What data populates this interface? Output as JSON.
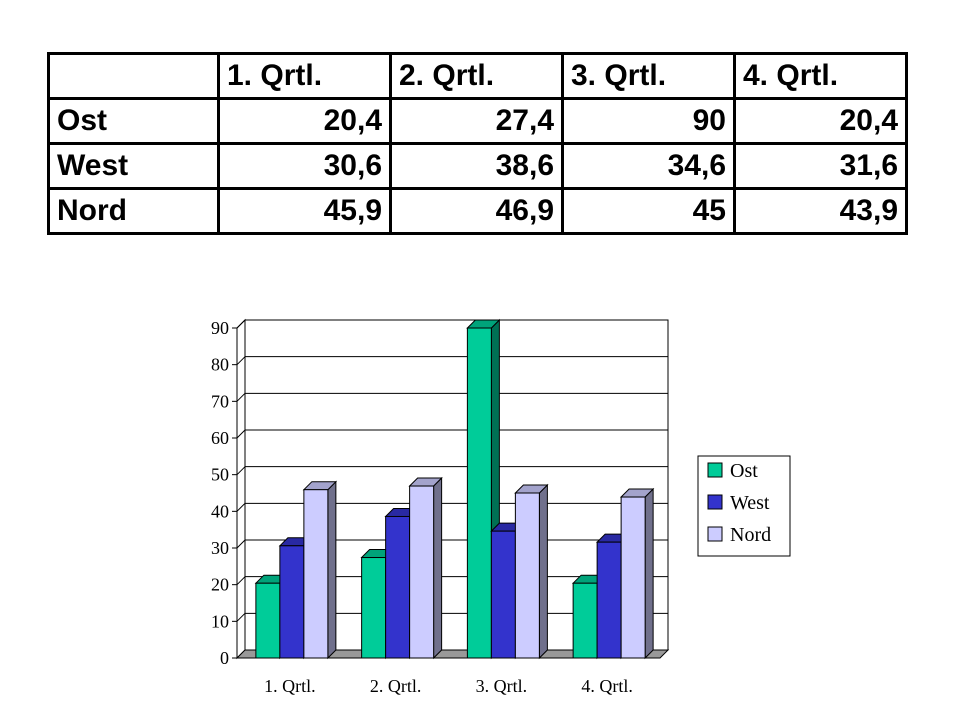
{
  "table": {
    "headers": [
      "",
      "1. Qrtl.",
      "2. Qrtl.",
      "3. Qrtl.",
      "4. Qrtl."
    ],
    "rows": [
      {
        "label": "Ost",
        "values": [
          "20,4",
          "27,4",
          "90",
          "20,4"
        ]
      },
      {
        "label": "West",
        "values": [
          "30,6",
          "38,6",
          "34,6",
          "31,6"
        ]
      },
      {
        "label": "Nord",
        "values": [
          "45,9",
          "46,9",
          "45",
          "43,9"
        ]
      }
    ]
  },
  "chart_data": {
    "type": "bar",
    "categories": [
      "1. Qrtl.",
      "2. Qrtl.",
      "3. Qrtl.",
      "4. Qrtl."
    ],
    "series": [
      {
        "name": "Ost",
        "values": [
          20.4,
          27.4,
          90,
          20.4
        ],
        "color": "#00CC99"
      },
      {
        "name": "West",
        "values": [
          30.6,
          38.6,
          34.6,
          31.6
        ],
        "color": "#3333CC"
      },
      {
        "name": "Nord",
        "values": [
          45.9,
          46.9,
          45,
          43.9
        ],
        "color": "#CCCCFF"
      }
    ],
    "ylim": [
      0,
      90
    ],
    "yticks": [
      "0",
      "10",
      "20",
      "30",
      "40",
      "50",
      "60",
      "70",
      "80",
      "90"
    ],
    "grid": true,
    "legend": "right",
    "three_d": true
  }
}
